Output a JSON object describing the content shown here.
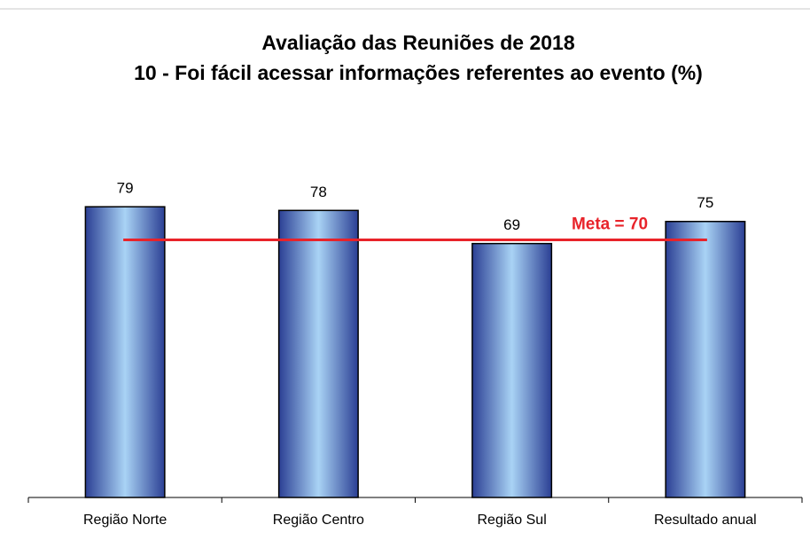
{
  "chart_data": {
    "type": "bar",
    "title": "Avaliação das Reuniões de 2018",
    "subtitle": "10 - Foi fácil acessar informações referentes ao evento (%)",
    "categories": [
      "Região Norte",
      "Região Centro",
      "Região Sul",
      "Resultado anual"
    ],
    "values": [
      79,
      78,
      69,
      75
    ],
    "color": "#2b3f94",
    "ylim": [
      0,
      100
    ],
    "reference_line": {
      "value": 70,
      "label": "Meta = 70",
      "color": "#e8232a"
    }
  }
}
